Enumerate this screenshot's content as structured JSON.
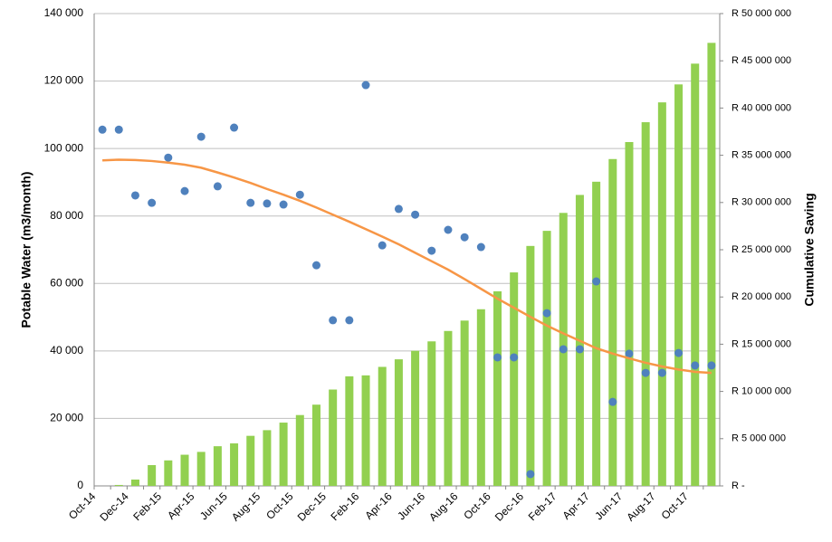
{
  "chart_data": {
    "type": "combo",
    "y_label": "Potable Water (m3/month)",
    "y2_label": "Cumulative Saving",
    "categories": [
      "Oct-14",
      null,
      "Dec-14",
      null,
      "Feb-15",
      null,
      "Apr-15",
      null,
      "Jun-15",
      null,
      "Aug-15",
      null,
      "Oct-15",
      null,
      "Dec-15",
      null,
      "Feb-16",
      null,
      "Apr-16",
      null,
      "Jun-16",
      null,
      "Aug-16",
      null,
      "Oct-16",
      null,
      "Dec-16",
      null,
      "Feb-17",
      null,
      "Apr-17",
      null,
      "Jun-17",
      null,
      "Aug-17",
      null,
      "Oct-17",
      null
    ],
    "ylim": [
      0,
      140000
    ],
    "yticks": [
      0,
      {
        "value": 20000,
        "label": "20 000"
      },
      {
        "value": 40000,
        "label": "40 000"
      },
      {
        "value": 60000,
        "label": "60 000"
      },
      {
        "value": 80000,
        "label": "80 000"
      },
      {
        "value": 100000,
        "label": "100 000"
      },
      {
        "value": 120000,
        "label": "120 000"
      },
      {
        "value": 140000,
        "label": "140 000"
      }
    ],
    "y2lim": [
      0,
      50000000
    ],
    "y2ticks": [
      {
        "value": 0,
        "label": "R -"
      },
      {
        "value": 5000000,
        "label": "R 5 000 000"
      },
      {
        "value": 10000000,
        "label": "R 10 000 000"
      },
      {
        "value": 15000000,
        "label": "R 15 000 000"
      },
      {
        "value": 20000000,
        "label": "R 20 000 000"
      },
      {
        "value": 25000000,
        "label": "R 25 000 000"
      },
      {
        "value": 30000000,
        "label": "R 30 000 000"
      },
      {
        "value": 35000000,
        "label": "R 35 000 000"
      },
      {
        "value": 40000000,
        "label": "R 40 000 000"
      },
      {
        "value": 45000000,
        "label": "R 45 000 000"
      },
      {
        "value": 50000000,
        "label": "R 50 000 000"
      }
    ],
    "grid": true,
    "series": [
      {
        "type": "bar",
        "axis": "y2",
        "color": "#92d050",
        "values": [
          0,
          100000,
          670000,
          2200000,
          2700000,
          3300000,
          3600000,
          4200000,
          4500000,
          5300000,
          5900000,
          6700000,
          7500000,
          8600000,
          10200000,
          11600000,
          11700000,
          12600000,
          13400000,
          14300000,
          15300000,
          16400000,
          17500000,
          18700000,
          20600000,
          22600000,
          25400000,
          27000000,
          28900000,
          30800000,
          32200000,
          34600000,
          36400000,
          38500000,
          40600000,
          42500000,
          44700000,
          46900000
        ]
      },
      {
        "type": "scatter",
        "color": "#4f81bd",
        "values": [
          105600,
          105600,
          86100,
          83900,
          97300,
          87400,
          103500,
          88800,
          106200,
          83900,
          83700,
          83400,
          86300,
          65400,
          49100,
          49100,
          118800,
          71300,
          82100,
          80400,
          69700,
          75900,
          73700,
          70800,
          38100,
          38100,
          3500,
          51200,
          40500,
          40500,
          60600,
          24900,
          39200,
          33500,
          33500,
          39400,
          35700,
          35700
        ]
      },
      {
        "type": "line",
        "color": "#f79646",
        "values": [
          96500,
          96700,
          96600,
          96300,
          95800,
          95200,
          94300,
          92900,
          91400,
          89800,
          88000,
          86300,
          84500,
          82500,
          80400,
          78300,
          76100,
          73900,
          71600,
          69100,
          66600,
          64100,
          61300,
          58400,
          55500,
          52800,
          50100,
          47500,
          45200,
          43000,
          40800,
          39200,
          37800,
          36500,
          35400,
          34500,
          33800,
          33500
        ]
      }
    ]
  }
}
